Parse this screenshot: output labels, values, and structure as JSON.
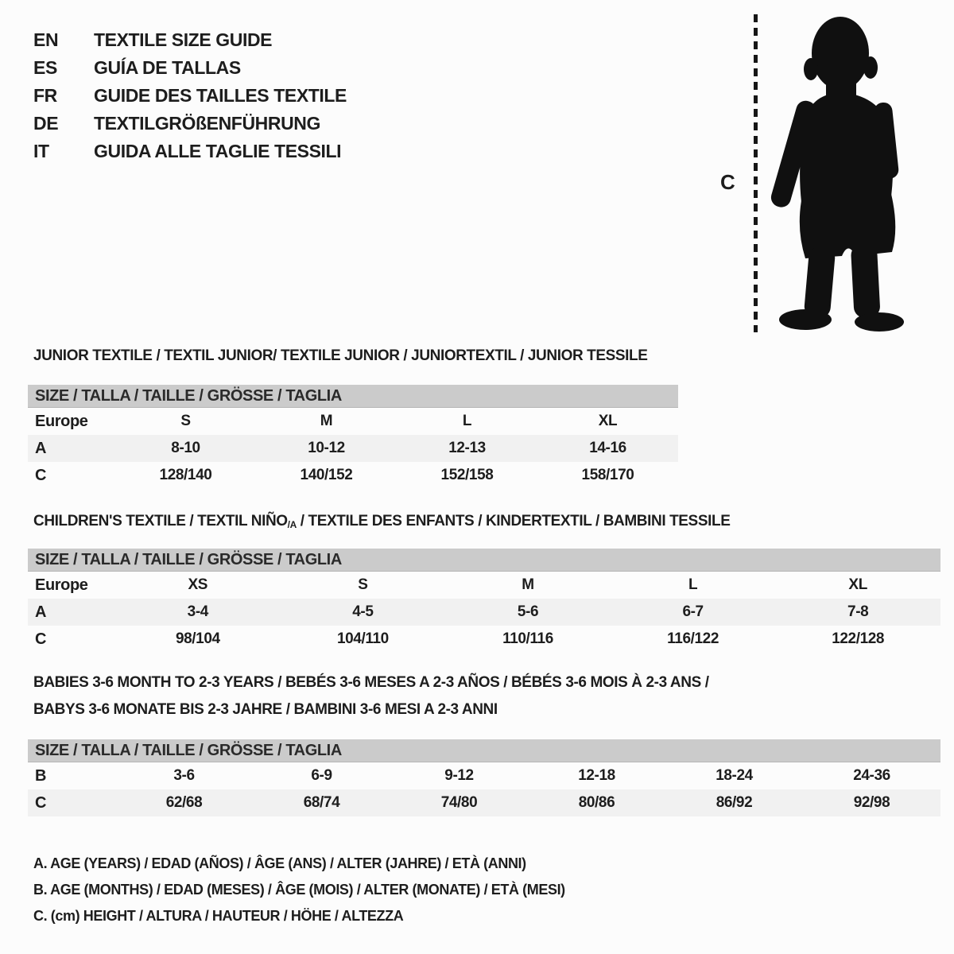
{
  "header": {
    "languages": [
      {
        "code": "EN",
        "title": "TEXTILE SIZE GUIDE"
      },
      {
        "code": "ES",
        "title": "GUÍA DE TALLAS"
      },
      {
        "code": "FR",
        "title": "GUIDE DES TAILLES TEXTILE"
      },
      {
        "code": "DE",
        "title": "TEXTILGRÖßENFÜHRUNG"
      },
      {
        "code": "IT",
        "title": "GUIDA ALLE TAGLIE TESSILI"
      }
    ]
  },
  "figure": {
    "measure_label": "C",
    "icon": "toddler-silhouette"
  },
  "sections": {
    "junior": {
      "title": "JUNIOR TEXTILE / TEXTIL JUNIOR/ TEXTILE JUNIOR / JUNIORTEXTIL / JUNIOR TESSILE",
      "table": {
        "header": "SIZE / TALLA / TAILLE / GRÖSSE / TAGLIA",
        "rows": [
          {
            "label": "Europe",
            "values": [
              "S",
              "M",
              "L",
              "XL"
            ]
          },
          {
            "label": "A",
            "values": [
              "8-10",
              "10-12",
              "12-13",
              "14-16"
            ]
          },
          {
            "label": "C",
            "values": [
              "128/140",
              "140/152",
              "152/158",
              "158/170"
            ]
          }
        ]
      }
    },
    "children": {
      "title_prefix": "CHILDREN'S TEXTILE / TEXTIL NIÑO",
      "title_sub": "/A",
      "title_suffix": " / TEXTILE DES ENFANTS / KINDERTEXTIL / BAMBINI TESSILE",
      "table": {
        "header": "SIZE / TALLA / TAILLE / GRÖSSE / TAGLIA",
        "rows": [
          {
            "label": "Europe",
            "values": [
              "XS",
              "S",
              "M",
              "L",
              "XL"
            ]
          },
          {
            "label": "A",
            "values": [
              "3-4",
              "4-5",
              "5-6",
              "6-7",
              "7-8"
            ]
          },
          {
            "label": "C",
            "values": [
              "98/104",
              "104/110",
              "110/116",
              "116/122",
              "122/128"
            ]
          }
        ]
      }
    },
    "babies": {
      "title_line1": "BABIES 3-6 MONTH TO 2-3 YEARS / BEBÉS 3-6 MESES A 2-3 AÑOS / BÉBÉS 3-6 MOIS À 2-3 ANS /",
      "title_line2": "BABYS 3-6 MONATE BIS 2-3 JAHRE / BAMBINI 3-6 MESI A 2-3 ANNI",
      "table": {
        "header": "SIZE / TALLA / TAILLE / GRÖSSE / TAGLIA",
        "rows": [
          {
            "label": "B",
            "values": [
              "3-6",
              "6-9",
              "9-12",
              "12-18",
              "18-24",
              "24-36"
            ]
          },
          {
            "label": "C",
            "values": [
              "62/68",
              "68/74",
              "74/80",
              "80/86",
              "86/92",
              "92/98"
            ]
          }
        ]
      }
    }
  },
  "legend": [
    "A. AGE (YEARS) / EDAD (AÑOS) / ÂGE (ANS) / ALTER (JAHRE) / ETÀ (ANNI)",
    "B. AGE (MONTHS) / EDAD (MESES) / ÂGE (MOIS) / ALTER (MONATE) / ETÀ (MESI)",
    "C. (cm) HEIGHT / ALTURA / HAUTEUR / HÖHE / ALTEZZA"
  ],
  "colors": {
    "header_bar": "#cbcbcb",
    "row_shaded": "#f1f1f1",
    "text": "#1d1d1d",
    "silhouette": "#101010"
  }
}
